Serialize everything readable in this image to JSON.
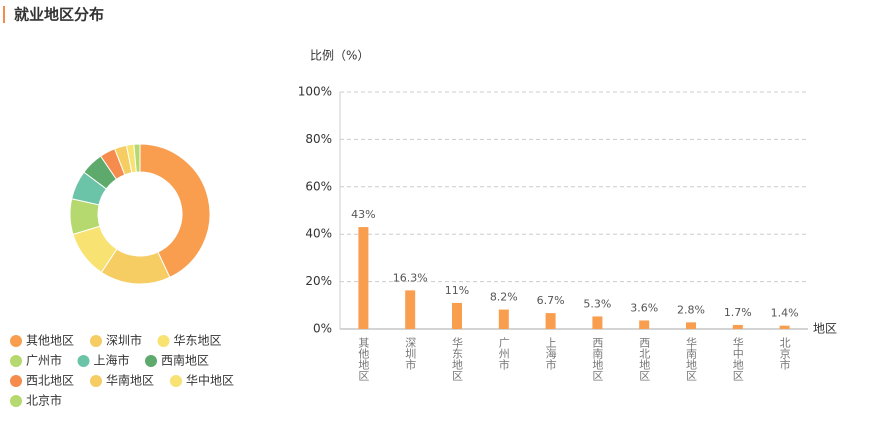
{
  "header": {
    "title": "就业地区分布"
  },
  "chart_data": [
    {
      "type": "pie",
      "categories": [
        "其他地区",
        "深圳市",
        "华东地区",
        "广州市",
        "上海市",
        "西南地区",
        "西北地区",
        "华南地区",
        "华中地区",
        "北京市"
      ],
      "values": [
        43,
        16.3,
        11,
        8.2,
        6.7,
        5.3,
        3.6,
        2.8,
        1.7,
        1.4
      ],
      "colors": [
        "#f99d4e",
        "#f5cd63",
        "#f7e272",
        "#b6d96f",
        "#6cc4a8",
        "#5eaa6c",
        "#f58b4c",
        "#f5cd63",
        "#f7e272",
        "#b6d96f"
      ]
    },
    {
      "type": "bar",
      "y_label": "比例（%）",
      "x_label": "地区",
      "categories": [
        "其他地区",
        "深圳市",
        "华东地区",
        "广州市",
        "上海市",
        "西南地区",
        "西北地区",
        "华南地区",
        "华中地区",
        "北京市"
      ],
      "values": [
        43,
        16.3,
        11,
        8.2,
        6.7,
        5.3,
        3.6,
        2.8,
        1.7,
        1.4
      ],
      "value_labels": [
        "43%",
        "16.3%",
        "11%",
        "8.2%",
        "6.7%",
        "5.3%",
        "3.6%",
        "2.8%",
        "1.7%",
        "1.4%"
      ],
      "color": "#f99d4e",
      "ylim": [
        0,
        100
      ],
      "yticks": [
        {
          "value": 0,
          "label": "0%"
        },
        {
          "value": 20,
          "label": "20%"
        },
        {
          "value": 40,
          "label": "40%"
        },
        {
          "value": 60,
          "label": "60%"
        },
        {
          "value": 80,
          "label": "80%"
        },
        {
          "value": 100,
          "label": "100%"
        }
      ],
      "grid": true
    }
  ]
}
